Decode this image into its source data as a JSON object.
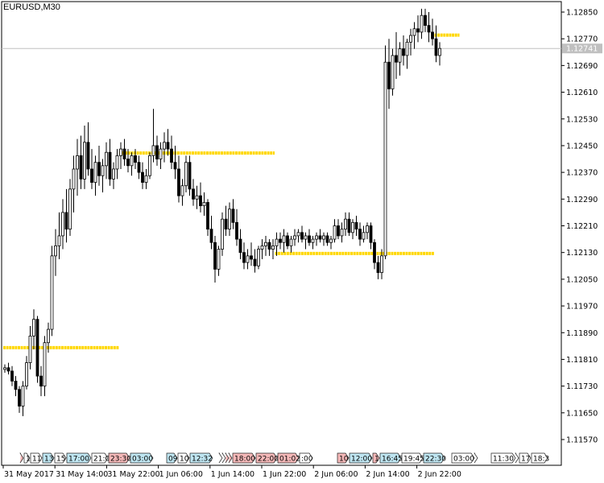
{
  "window": {
    "symbol_label": "EURUSD,M30"
  },
  "current_price": {
    "value": "1.12741",
    "color": "#c0c0c0"
  },
  "colors": {
    "level_line": "#ffd700",
    "session_blue": "#bfe6f2",
    "session_red": "#f5b8b8",
    "session_white": "#ffffff"
  },
  "chart_data": {
    "type": "candlestick",
    "symbol": "EURUSD",
    "timeframe": "M30",
    "price_ticks": [
      "1.12850",
      "1.12770",
      "1.12690",
      "1.12610",
      "1.12530",
      "1.12450",
      "1.12370",
      "1.12290",
      "1.12210",
      "1.12130",
      "1.12050",
      "1.11970",
      "1.11890",
      "1.11810",
      "1.11730",
      "1.11650",
      "1.11570"
    ],
    "time_ticks": [
      "31 May 2017",
      "31 May 14:00",
      "31 May 22:00",
      "1 Jun 06:00",
      "1 Jun 14:00",
      "1 Jun 22:00",
      "2 Jun 06:00",
      "2 Jun 14:00",
      "2 Jun 22:00"
    ],
    "levels": [
      {
        "price": 1.11845,
        "from_bar": 0,
        "to_bar": 31
      },
      {
        "price": 1.12428,
        "from_bar": 32,
        "to_bar": 74
      },
      {
        "price": 1.12127,
        "from_bar": 75,
        "to_bar": 118
      },
      {
        "price": 1.12781,
        "from_bar": 119,
        "to_bar": 125
      }
    ],
    "session_boxes": [
      {
        "label": "",
        "color": "red",
        "w": 3
      },
      {
        "label": "1",
        "color": "white",
        "w": 7
      },
      {
        "label": "11:",
        "color": "white",
        "w": 14
      },
      {
        "label": "13:",
        "color": "blue",
        "w": 14
      },
      {
        "label": "15:",
        "color": "white",
        "w": 14
      },
      {
        "label": "17:00",
        "color": "blue",
        "w": 30
      },
      {
        "label": "21:0",
        "color": "white",
        "w": 20
      },
      {
        "label": "23:30",
        "color": "red",
        "w": 26
      },
      {
        "label": "03:00",
        "color": "blue",
        "w": 28
      },
      {
        "label": "09",
        "color": "blue",
        "w": 13
      },
      {
        "label": "10:",
        "color": "white",
        "w": 14
      },
      {
        "label": "12:32",
        "color": "blue",
        "w": 28
      },
      {
        "label": "",
        "color": "white",
        "w": 3
      },
      {
        "label": "",
        "color": "white",
        "w": 3
      },
      {
        "label": "",
        "color": "red",
        "w": 3
      },
      {
        "label": "",
        "color": "red",
        "w": 3
      },
      {
        "label": "18:00",
        "color": "red",
        "w": 28
      },
      {
        "label": "22:00",
        "color": "red",
        "w": 26
      },
      {
        "label": "01:02",
        "color": "red",
        "w": 26
      },
      {
        "label": ":00",
        "color": "white",
        "w": 16
      },
      {
        "label": "10:",
        "color": "red",
        "w": 14
      },
      {
        "label": "12:00",
        "color": "blue",
        "w": 28
      },
      {
        "label": "1",
        "color": "red",
        "w": 8
      },
      {
        "label": "16:45",
        "color": "blue",
        "w": 26
      },
      {
        "label": "19:45",
        "color": "white",
        "w": 26
      },
      {
        "label": "22:30",
        "color": "blue",
        "w": 26
      },
      {
        "label": "03:00",
        "color": "white",
        "w": 28
      },
      {
        "label": "",
        "color": "white",
        "w": 3
      },
      {
        "label": "11:30",
        "color": "white",
        "w": 30
      },
      {
        "label": "",
        "color": "white",
        "w": 3
      },
      {
        "label": "17",
        "color": "white",
        "w": 14
      },
      {
        "label": "18:3",
        "color": "white",
        "w": 20
      }
    ],
    "bars": [
      [
        1.1178,
        1.11795,
        1.1177,
        1.11785
      ],
      [
        1.11785,
        1.118,
        1.11765,
        1.11775
      ],
      [
        1.11775,
        1.1179,
        1.1173,
        1.11745
      ],
      [
        1.11745,
        1.1176,
        1.117,
        1.1172
      ],
      [
        1.1172,
        1.1173,
        1.1165,
        1.1167
      ],
      [
        1.1167,
        1.11745,
        1.1164,
        1.1173
      ],
      [
        1.1173,
        1.1182,
        1.1172,
        1.118
      ],
      [
        1.118,
        1.1191,
        1.1178,
        1.1188
      ],
      [
        1.1188,
        1.1196,
        1.1184,
        1.1193
      ],
      [
        1.1193,
        1.1194,
        1.1174,
        1.1176
      ],
      [
        1.1176,
        1.1179,
        1.117,
        1.1173
      ],
      [
        1.1173,
        1.1188,
        1.117,
        1.1186
      ],
      [
        1.1186,
        1.1192,
        1.1183,
        1.119
      ],
      [
        1.119,
        1.1215,
        1.1188,
        1.1212
      ],
      [
        1.1212,
        1.122,
        1.1206,
        1.1215
      ],
      [
        1.1215,
        1.1225,
        1.1211,
        1.1218
      ],
      [
        1.1218,
        1.1229,
        1.1214,
        1.1225
      ],
      [
        1.1225,
        1.1232,
        1.1216,
        1.122
      ],
      [
        1.122,
        1.1235,
        1.1218,
        1.1232
      ],
      [
        1.1232,
        1.1242,
        1.1225,
        1.1238
      ],
      [
        1.1238,
        1.1247,
        1.123,
        1.1242
      ],
      [
        1.1242,
        1.1248,
        1.1232,
        1.1235
      ],
      [
        1.1235,
        1.1251,
        1.1232,
        1.1246
      ],
      [
        1.1246,
        1.1252,
        1.1236,
        1.1238
      ],
      [
        1.1238,
        1.1244,
        1.1232,
        1.1234
      ],
      [
        1.1234,
        1.1242,
        1.123,
        1.124
      ],
      [
        1.124,
        1.1245,
        1.1233,
        1.1236
      ],
      [
        1.1236,
        1.1241,
        1.1231,
        1.1239
      ],
      [
        1.1239,
        1.1246,
        1.1235,
        1.1243
      ],
      [
        1.1243,
        1.1247,
        1.1233,
        1.1235
      ],
      [
        1.1235,
        1.124,
        1.1232,
        1.1238
      ],
      [
        1.1238,
        1.1244,
        1.1235,
        1.1242
      ],
      [
        1.1242,
        1.1246,
        1.1238,
        1.1244
      ],
      [
        1.1244,
        1.1247,
        1.1239,
        1.1241
      ],
      [
        1.1241,
        1.1244,
        1.1237,
        1.1239
      ],
      [
        1.1239,
        1.1243,
        1.1236,
        1.1242
      ],
      [
        1.1242,
        1.1244,
        1.1238,
        1.124
      ],
      [
        1.124,
        1.1242,
        1.1235,
        1.1237
      ],
      [
        1.1237,
        1.124,
        1.1232,
        1.1234
      ],
      [
        1.1234,
        1.1238,
        1.1232,
        1.1236
      ],
      [
        1.1236,
        1.1243,
        1.1235,
        1.1242
      ],
      [
        1.1242,
        1.1256,
        1.124,
        1.1245
      ],
      [
        1.1245,
        1.1248,
        1.1239,
        1.1241
      ],
      [
        1.1241,
        1.1246,
        1.1238,
        1.1244
      ],
      [
        1.1244,
        1.1249,
        1.124,
        1.1246
      ],
      [
        1.1246,
        1.125,
        1.1242,
        1.1244
      ],
      [
        1.1244,
        1.1248,
        1.1238,
        1.124
      ],
      [
        1.124,
        1.1245,
        1.1235,
        1.1238
      ],
      [
        1.1238,
        1.1242,
        1.1228,
        1.123
      ],
      [
        1.123,
        1.1235,
        1.1227,
        1.1233
      ],
      [
        1.1233,
        1.1242,
        1.1231,
        1.124
      ],
      [
        1.124,
        1.1242,
        1.123,
        1.1232
      ],
      [
        1.1232,
        1.1235,
        1.1227,
        1.1229
      ],
      [
        1.1229,
        1.1233,
        1.1226,
        1.123
      ],
      [
        1.123,
        1.1234,
        1.1225,
        1.1227
      ],
      [
        1.1227,
        1.1231,
        1.1224,
        1.1228
      ],
      [
        1.1228,
        1.1229,
        1.1218,
        1.122
      ],
      [
        1.122,
        1.1224,
        1.1214,
        1.1216
      ],
      [
        1.1216,
        1.1218,
        1.1204,
        1.1208
      ],
      [
        1.1208,
        1.1215,
        1.1206,
        1.1214
      ],
      [
        1.1214,
        1.1225,
        1.1212,
        1.1223
      ],
      [
        1.1223,
        1.1227,
        1.1218,
        1.122
      ],
      [
        1.122,
        1.1228,
        1.1218,
        1.1226
      ],
      [
        1.1226,
        1.1229,
        1.122,
        1.1222
      ],
      [
        1.1222,
        1.1226,
        1.1215,
        1.1217
      ],
      [
        1.1217,
        1.122,
        1.1211,
        1.1213
      ],
      [
        1.1213,
        1.1216,
        1.1208,
        1.121
      ],
      [
        1.121,
        1.1214,
        1.1208,
        1.1212
      ],
      [
        1.1212,
        1.1216,
        1.1209,
        1.1211
      ],
      [
        1.1211,
        1.1214,
        1.1207,
        1.1209
      ],
      [
        1.1209,
        1.1215,
        1.1208,
        1.1214
      ],
      [
        1.1214,
        1.1217,
        1.1211,
        1.1215
      ],
      [
        1.1215,
        1.1218,
        1.1212,
        1.1216
      ],
      [
        1.1216,
        1.1217,
        1.1212,
        1.1214
      ],
      [
        1.1214,
        1.1217,
        1.1211,
        1.1215
      ],
      [
        1.1215,
        1.1219,
        1.1212,
        1.1217
      ],
      [
        1.1217,
        1.1219,
        1.1214,
        1.1216
      ],
      [
        1.1216,
        1.122,
        1.1213,
        1.1218
      ],
      [
        1.1218,
        1.1219,
        1.1214,
        1.1215
      ],
      [
        1.1215,
        1.1218,
        1.1213,
        1.1217
      ],
      [
        1.1217,
        1.122,
        1.1215,
        1.1218
      ],
      [
        1.1218,
        1.122,
        1.1216,
        1.1219
      ],
      [
        1.1219,
        1.1221,
        1.1216,
        1.1217
      ],
      [
        1.1217,
        1.1219,
        1.1214,
        1.1218
      ],
      [
        1.1218,
        1.122,
        1.1215,
        1.1216
      ],
      [
        1.1216,
        1.1218,
        1.1214,
        1.1217
      ],
      [
        1.1217,
        1.1219,
        1.1215,
        1.1218
      ],
      [
        1.1218,
        1.122,
        1.1216,
        1.1217
      ],
      [
        1.1217,
        1.1219,
        1.1215,
        1.1218
      ],
      [
        1.1218,
        1.1219,
        1.1215,
        1.1216
      ],
      [
        1.1216,
        1.1218,
        1.1214,
        1.1217
      ],
      [
        1.1217,
        1.1223,
        1.1216,
        1.1221
      ],
      [
        1.1221,
        1.1223,
        1.1217,
        1.1218
      ],
      [
        1.1218,
        1.1222,
        1.1216,
        1.122
      ],
      [
        1.122,
        1.1225,
        1.1218,
        1.1223
      ],
      [
        1.1223,
        1.1225,
        1.1218,
        1.1219
      ],
      [
        1.1219,
        1.1223,
        1.1217,
        1.1222
      ],
      [
        1.1222,
        1.1224,
        1.1218,
        1.122
      ],
      [
        1.122,
        1.1222,
        1.1215,
        1.1217
      ],
      [
        1.1217,
        1.1221,
        1.1216,
        1.1219
      ],
      [
        1.1219,
        1.1222,
        1.1217,
        1.1221
      ],
      [
        1.1221,
        1.1222,
        1.1214,
        1.1216
      ],
      [
        1.1216,
        1.1217,
        1.1208,
        1.121
      ],
      [
        1.121,
        1.1212,
        1.1205,
        1.1207
      ],
      [
        1.1207,
        1.1214,
        1.1205,
        1.1212
      ],
      [
        1.1212,
        1.1275,
        1.1211,
        1.127
      ],
      [
        1.127,
        1.1277,
        1.1256,
        1.1262
      ],
      [
        1.1262,
        1.1274,
        1.126,
        1.1272
      ],
      [
        1.1272,
        1.1279,
        1.1265,
        1.127
      ],
      [
        1.127,
        1.1276,
        1.1266,
        1.1274
      ],
      [
        1.1274,
        1.1278,
        1.1269,
        1.1272
      ],
      [
        1.1272,
        1.1277,
        1.1268,
        1.1276
      ],
      [
        1.1276,
        1.128,
        1.1272,
        1.1278
      ],
      [
        1.1278,
        1.1282,
        1.1274,
        1.128
      ],
      [
        1.128,
        1.1284,
        1.1276,
        1.1279
      ],
      [
        1.1279,
        1.1286,
        1.1277,
        1.1284
      ],
      [
        1.1284,
        1.1286,
        1.1279,
        1.1281
      ],
      [
        1.1281,
        1.1285,
        1.1276,
        1.1279
      ],
      [
        1.1279,
        1.1283,
        1.1275,
        1.1277
      ],
      [
        1.1277,
        1.1281,
        1.127,
        1.1272
      ],
      [
        1.1272,
        1.1276,
        1.1269,
        1.12741
      ]
    ]
  }
}
